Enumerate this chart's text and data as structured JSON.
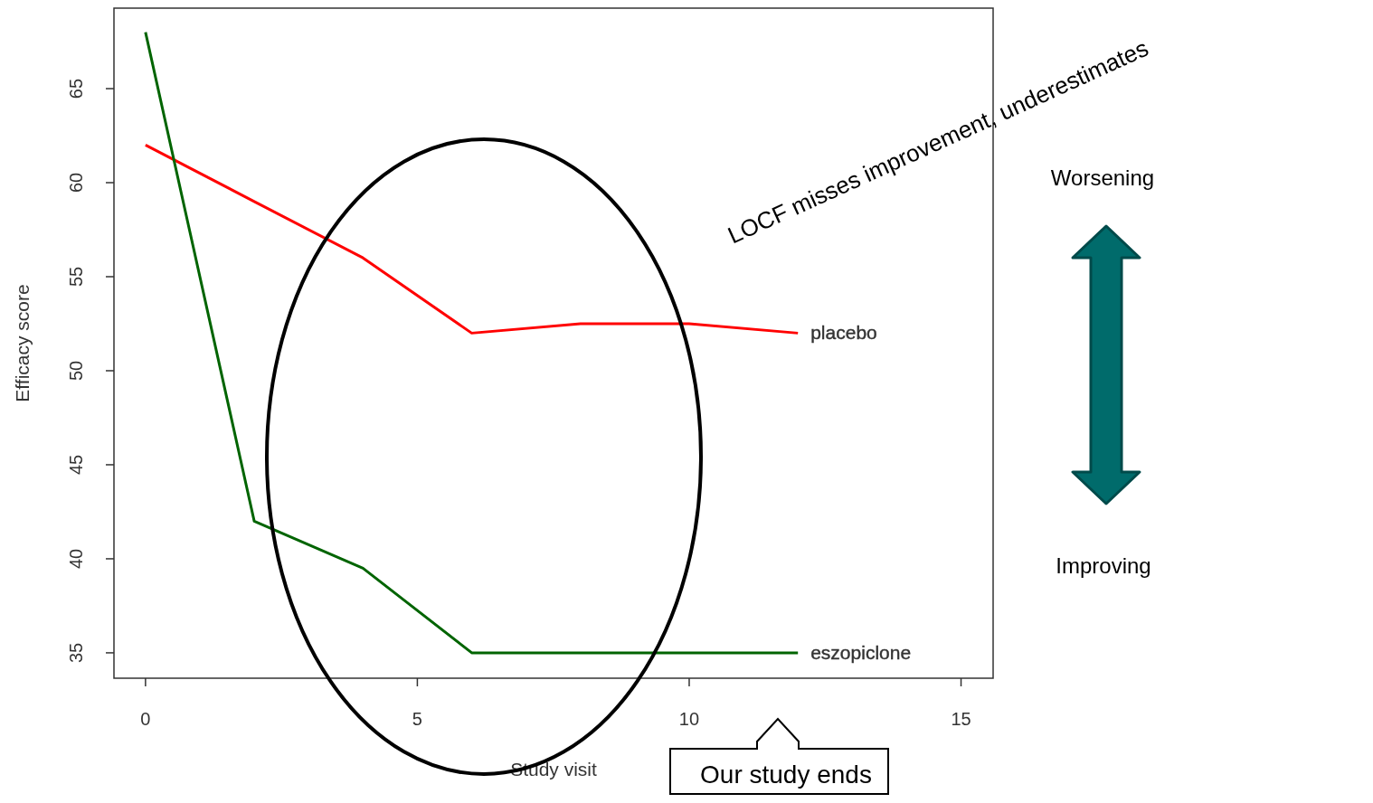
{
  "chart_data": {
    "type": "line",
    "xlabel": "Study visit",
    "ylabel": "Efficacy score",
    "xlim": [
      -0.58,
      15.59
    ],
    "ylim": [
      33.65,
      69.28
    ],
    "xticks": [
      0,
      5,
      10,
      15
    ],
    "yticks": [
      35,
      40,
      45,
      50,
      55,
      60,
      65
    ],
    "x": [
      0,
      2,
      4,
      6,
      8,
      10,
      12
    ],
    "grid": false,
    "marker": "none",
    "line_style": "solid",
    "series": [
      {
        "name": "placebo",
        "color": "#ff0000",
        "values": [
          62,
          59,
          56,
          52,
          52.5,
          52.5,
          52
        ]
      },
      {
        "name": "eszopiclone",
        "color": "#006400",
        "values": [
          68,
          42,
          39.5,
          35,
          35,
          35,
          35
        ]
      }
    ],
    "annotations": [
      "LOCF misses improvement, underestimates",
      "Worsening",
      "Improving",
      "Our study ends"
    ]
  }
}
